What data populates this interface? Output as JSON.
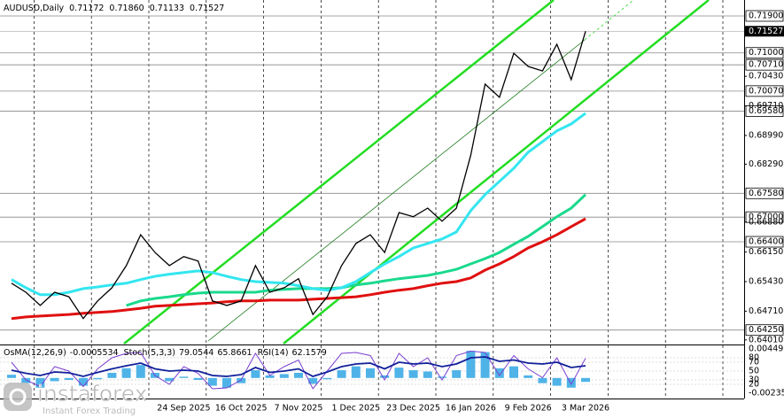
{
  "chart_data": [
    {
      "type": "line",
      "title": "AUDUSD,Daily",
      "header_values": [
        0.71172,
        {
          "value": 0.7186,
          "label": "0.71860"
        },
        0.71133,
        0.71527
      ],
      "categories": [
        null,
        null,
        null,
        null,
        null,
        null,
        null,
        null,
        null,
        null,
        null,
        null,
        "24 Sep 2025",
        null,
        null,
        null,
        "16 Oct 2025",
        null,
        null,
        null,
        "7 Nov 2025",
        null,
        null,
        null,
        "1 Dec 2025",
        null,
        null,
        null,
        "23 Dec 2025",
        null,
        null,
        null,
        "16 Jan 2026",
        null,
        null,
        null,
        "9 Feb 2026",
        null,
        null,
        null,
        "3 Mar 2026"
      ],
      "series": [
        {
          "color": "#000000",
          "values": [
            0.6539,
            0.6517,
            0.6485,
            0.6517,
            0.6506,
            0.6453,
            0.6496,
            0.6528,
            0.6582,
            0.6657,
            0.6614,
            0.6582,
            0.6604,
            0.6593,
            0.6496,
            0.6485,
            0.6496,
            0.6582,
            0.6517,
            0.6528,
            0.655,
            0.6463,
            0.6506,
            0.6582,
            0.6636,
            0.6657,
            0.6614,
            0.6711,
            0.6701,
            0.6722,
            0.669,
            0.6722,
            0.6851,
            0.7024,
            0.6992,
            0.7099,
            0.7067,
            0.7056,
            0.7121,
            0.7035,
            0.71527
          ]
        },
        {
          "color": "#33e6f0",
          "values": [
            0.6548,
            0.6528,
            0.6511,
            0.6511,
            0.6517,
            0.6526,
            0.653,
            0.6535,
            0.6539,
            0.6548,
            0.6556,
            0.6561,
            0.6565,
            0.6569,
            0.6565,
            0.6556,
            0.6548,
            0.6543,
            0.6541,
            0.6539,
            0.6533,
            0.6526,
            0.6522,
            0.6528,
            0.6543,
            0.6565,
            0.6586,
            0.6604,
            0.6625,
            0.6636,
            0.6647,
            0.6664,
            0.6716,
            0.6755,
            0.6787,
            0.6819,
            0.6858,
            0.6884,
            0.691,
            0.6927,
            0.6953
          ]
        },
        {
          "color": "#19d98c",
          "values": [
            null,
            null,
            null,
            null,
            null,
            null,
            null,
            null,
            0.6485,
            0.6496,
            0.6502,
            0.6506,
            0.6511,
            0.6515,
            0.6517,
            0.6517,
            0.6517,
            0.6517,
            0.6522,
            0.6524,
            0.6526,
            0.6526,
            0.6526,
            0.6528,
            0.6535,
            0.6539,
            0.6545,
            0.655,
            0.6554,
            0.6558,
            0.6565,
            0.6573,
            0.6586,
            0.6599,
            0.6614,
            0.6634,
            0.6653,
            0.6677,
            0.6701,
            0.6722,
            0.6755
          ]
        },
        {
          "color": "#e01010",
          "values": [
            0.6453,
            0.6457,
            0.6459,
            0.6461,
            0.6463,
            0.6466,
            0.6468,
            0.647,
            0.6474,
            0.6478,
            0.6483,
            0.6485,
            0.6487,
            0.6489,
            0.6491,
            0.6494,
            0.6496,
            0.6496,
            0.6498,
            0.6498,
            0.6498,
            0.65,
            0.6502,
            0.6504,
            0.6506,
            0.6511,
            0.6517,
            0.6522,
            0.6526,
            0.6533,
            0.6539,
            0.6543,
            0.6552,
            0.6571,
            0.6586,
            0.6604,
            0.6625,
            0.664,
            0.6657,
            0.6677,
            0.6696
          ]
        }
      ],
      "ylim": [
        0.6392,
        0.72288
      ],
      "yticks": [
        {
          "value": 0.7043,
          "label": "0.70430"
        },
        {
          "value": 0.6971,
          "label": "0.69710"
        },
        {
          "value": 0.6899,
          "label": "0.68990"
        },
        {
          "value": 0.6829,
          "label": "0.68290"
        },
        {
          "value": 0.6688,
          "label": "0.66880"
        },
        {
          "value": 0.6615,
          "label": "0.66150"
        },
        {
          "value": 0.6543,
          "label": "0.65430"
        },
        {
          "value": 0.6471,
          "label": "0.64710"
        },
        {
          "value": 0.6401,
          "label": "0.64010"
        }
      ],
      "levels": [
        {
          "value": 0.719,
          "label": "0.71900"
        },
        {
          "value": 0.71,
          "label": "0.71000"
        },
        {
          "value": 0.7071,
          "label": "0.70710"
        },
        {
          "value": 0.7007,
          "label": "0.70070"
        },
        {
          "value": 0.6958,
          "label": "0.69580"
        },
        {
          "value": 0.6758,
          "label": "0.67580"
        },
        {
          "value": 0.67,
          "label": "0.67000"
        },
        {
          "value": 0.664,
          "label": "0.66400"
        },
        {
          "value": 0.6425,
          "label": "0.64250"
        }
      ],
      "last_price": 0.71527
    },
    {
      "type": "oscillator",
      "indicators": [
        {
          "name": "OsMA(12,26,9)",
          "readings": [
            -0.0005534
          ]
        },
        {
          "name": "Stoch(5,3,3)",
          "readings": [
            79.0544,
            65.8661
          ]
        },
        {
          "name": "RSI(14)",
          "readings": [
            62.1579
          ]
        }
      ],
      "series": [
        {
          "color": "#4fb3e8",
          "axis": "y2",
          "values": [
            0.0005,
            -0.0008,
            -0.0015,
            -0.0005,
            -0.0003,
            -0.0012,
            -0.0002,
            0.0008,
            0.0015,
            0.002,
            0.0008,
            -0.0005,
            0.0002,
            -0.0003,
            -0.0012,
            -0.0015,
            -0.0008,
            0.0012,
            0.0004,
            0.0006,
            0.0008,
            -0.0009,
            -0.0002,
            0.0012,
            0.0018,
            0.0015,
            0.0004,
            0.0016,
            0.0012,
            0.001,
            0.0002,
            0.0012,
            0.0042,
            0.004,
            0.0015,
            0.0018,
            0.0004,
            -0.0008,
            -0.0012,
            -0.0015,
            -0.0006
          ]
        },
        {
          "color": "#7a3fd0",
          "values": [
            70,
            30,
            15,
            60,
            50,
            15,
            55,
            80,
            90,
            92,
            40,
            20,
            60,
            45,
            10,
            12,
            30,
            90,
            40,
            60,
            75,
            10,
            50,
            90,
            92,
            85,
            30,
            90,
            60,
            80,
            30,
            85,
            95,
            92,
            40,
            85,
            55,
            35,
            80,
            20,
            79
          ]
        },
        {
          "color": "#10209a",
          "values": [
            52,
            45,
            40,
            48,
            46,
            38,
            47,
            55,
            62,
            68,
            55,
            50,
            52,
            50,
            40,
            38,
            42,
            58,
            47,
            50,
            55,
            38,
            48,
            60,
            66,
            68,
            55,
            70,
            66,
            68,
            60,
            66,
            80,
            82,
            72,
            75,
            68,
            66,
            70,
            58,
            62
          ]
        }
      ],
      "ylim": [
        0,
        100
      ],
      "yticks": [
        80,
        70,
        50,
        30,
        20
      ],
      "y2lim": [
        -0.002355,
        0.0044924
      ],
      "y2ticks": [
        0.0044924,
        -0.002355
      ]
    }
  ],
  "logo": {
    "name": "instaforex",
    "tagline": "Instant Forex Trading"
  }
}
